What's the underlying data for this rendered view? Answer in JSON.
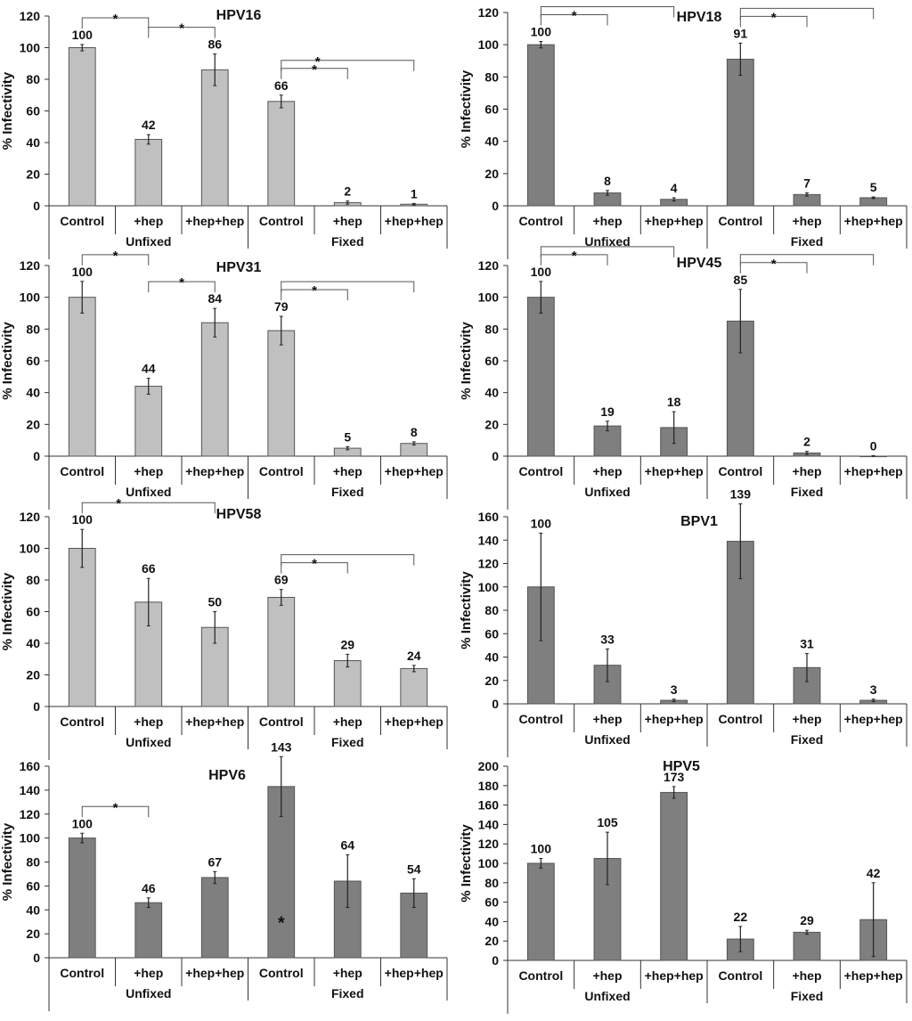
{
  "colors": {
    "light_bar": "#c0c0c0",
    "dark_bar": "#7f7f7f",
    "bar_stroke": "#555555",
    "axis": "#333333",
    "text": "#111111"
  },
  "chart_data": [
    {
      "type": "bar",
      "title": "HPV16",
      "ylabel": "% Infectivity",
      "ylim": [
        0,
        120
      ],
      "yticks": [
        0,
        20,
        40,
        60,
        80,
        100,
        120
      ],
      "categories": [
        "Control",
        "+hep",
        "+hep+hep",
        "Control",
        "+hep",
        "+hep+hep"
      ],
      "groups": [
        "Unfixed",
        "Fixed"
      ],
      "values": [
        100,
        42,
        86,
        66,
        2,
        1
      ],
      "value_labels": [
        "100",
        "42",
        "86",
        "66",
        "2",
        "1"
      ],
      "errors": [
        2,
        3,
        10,
        4,
        1,
        0.5
      ],
      "bar_color": "light",
      "significance": [
        {
          "from": 0,
          "to": 1,
          "label": "*"
        },
        {
          "from": 1,
          "to": 2,
          "label": "*"
        },
        {
          "from": 3,
          "to": 4,
          "label": "*"
        },
        {
          "from": 3,
          "to": 5,
          "label": "*"
        }
      ],
      "in_bar_marks": []
    },
    {
      "type": "bar",
      "title": "HPV18",
      "ylabel": "% Infectivity",
      "ylim": [
        0,
        120
      ],
      "yticks": [
        0,
        20,
        40,
        60,
        80,
        100,
        120
      ],
      "categories": [
        "Control",
        "+hep",
        "+hep+hep",
        "Control",
        "+hep",
        "+hep+hep"
      ],
      "groups": [
        "Unfixed",
        "Fixed"
      ],
      "values": [
        100,
        8,
        4,
        91,
        7,
        5
      ],
      "value_labels": [
        "100",
        "8",
        "4",
        "91",
        "7",
        "5"
      ],
      "errors": [
        2,
        1.5,
        1,
        10,
        1,
        0.5
      ],
      "bar_color": "dark",
      "significance": [
        {
          "from": 0,
          "to": 1,
          "label": "*"
        },
        {
          "from": 0,
          "to": 2,
          "label": ""
        },
        {
          "from": 3,
          "to": 4,
          "label": "*"
        },
        {
          "from": 3,
          "to": 5,
          "label": ""
        }
      ],
      "in_bar_marks": []
    },
    {
      "type": "bar",
      "title": "HPV31",
      "ylabel": "% Infectivity",
      "ylim": [
        0,
        120
      ],
      "yticks": [
        0,
        20,
        40,
        60,
        80,
        100,
        120
      ],
      "categories": [
        "Control",
        "+hep",
        "+hep+hep",
        "Control",
        "+hep",
        "+hep+hep"
      ],
      "groups": [
        "Unfixed",
        "Fixed"
      ],
      "values": [
        100,
        44,
        84,
        79,
        5,
        8
      ],
      "value_labels": [
        "100",
        "44",
        "84",
        "79",
        "5",
        "8"
      ],
      "errors": [
        10,
        5,
        9,
        9,
        1,
        1
      ],
      "bar_color": "light",
      "significance": [
        {
          "from": 0,
          "to": 1,
          "label": "*"
        },
        {
          "from": 1,
          "to": 2,
          "label": "*"
        },
        {
          "from": 3,
          "to": 4,
          "label": "*"
        },
        {
          "from": 3,
          "to": 5,
          "label": ""
        }
      ],
      "in_bar_marks": []
    },
    {
      "type": "bar",
      "title": "HPV45",
      "ylabel": "% Infectivity",
      "ylim": [
        0,
        120
      ],
      "yticks": [
        0,
        20,
        40,
        60,
        80,
        100,
        120
      ],
      "categories": [
        "Control",
        "+hep",
        "+hep+hep",
        "Control",
        "+hep",
        "+hep+hep"
      ],
      "groups": [
        "Unfixed",
        "Fixed"
      ],
      "values": [
        100,
        19,
        18,
        85,
        2,
        0
      ],
      "value_labels": [
        "100",
        "19",
        "18",
        "85",
        "2",
        "0"
      ],
      "errors": [
        10,
        3,
        10,
        20,
        1,
        0.3
      ],
      "bar_color": "dark",
      "significance": [
        {
          "from": 0,
          "to": 1,
          "label": "*"
        },
        {
          "from": 0,
          "to": 2,
          "label": ""
        },
        {
          "from": 3,
          "to": 4,
          "label": "*"
        },
        {
          "from": 3,
          "to": 5,
          "label": ""
        }
      ],
      "in_bar_marks": []
    },
    {
      "type": "bar",
      "title": "HPV58",
      "ylabel": "% Infectivity",
      "ylim": [
        0,
        120
      ],
      "yticks": [
        0,
        20,
        40,
        60,
        80,
        100,
        120
      ],
      "categories": [
        "Control",
        "+hep",
        "+hep+hep",
        "Control",
        "+hep",
        "+hep+hep"
      ],
      "groups": [
        "Unfixed",
        "Fixed"
      ],
      "values": [
        100,
        66,
        50,
        69,
        29,
        24
      ],
      "value_labels": [
        "100",
        "66",
        "50",
        "69",
        "29",
        "24"
      ],
      "errors": [
        12,
        15,
        10,
        5,
        4,
        2
      ],
      "bar_color": "light",
      "significance": [
        {
          "from": 0,
          "to": 2,
          "label": "*"
        },
        {
          "from": 3,
          "to": 4,
          "label": "*"
        },
        {
          "from": 3,
          "to": 5,
          "label": ""
        }
      ],
      "in_bar_marks": []
    },
    {
      "type": "bar",
      "title": "BPV1",
      "ylabel": "% Infectivity",
      "ylim": [
        0,
        160
      ],
      "yticks": [
        0,
        20,
        40,
        60,
        80,
        100,
        120,
        140,
        160
      ],
      "categories": [
        "Control",
        "+hep",
        "+hep+hep",
        "Control",
        "+hep",
        "+hep+hep"
      ],
      "groups": [
        "Unfixed",
        "Fixed"
      ],
      "values": [
        100,
        33,
        3,
        139,
        31,
        3
      ],
      "value_labels": [
        "100",
        "33",
        "3",
        "139",
        "31",
        "3"
      ],
      "errors": [
        46,
        14,
        1,
        32,
        12,
        1
      ],
      "bar_color": "dark",
      "significance": [],
      "in_bar_marks": []
    },
    {
      "type": "bar",
      "title": "HPV6",
      "ylabel": "% Infectivity",
      "ylim": [
        0,
        160
      ],
      "yticks": [
        0,
        20,
        40,
        60,
        80,
        100,
        120,
        140,
        160
      ],
      "categories": [
        "Control",
        "+hep",
        "+hep+hep",
        "Control",
        "+hep",
        "+hep+hep"
      ],
      "groups": [
        "Unfixed",
        "Fixed"
      ],
      "values": [
        100,
        46,
        67,
        143,
        64,
        54
      ],
      "value_labels": [
        "100",
        "46",
        "67",
        "143",
        "64",
        "54"
      ],
      "errors": [
        4,
        4,
        5,
        25,
        22,
        12
      ],
      "bar_color": "dark",
      "significance": [
        {
          "from": 0,
          "to": 1,
          "label": "*"
        }
      ],
      "in_bar_marks": [
        {
          "bar": 3,
          "value": 30,
          "label": "*"
        }
      ]
    },
    {
      "type": "bar",
      "title": "HPV5",
      "ylabel": "% Infectivity",
      "ylim": [
        0,
        200
      ],
      "yticks": [
        0,
        20,
        40,
        60,
        80,
        100,
        120,
        140,
        160,
        180,
        200
      ],
      "categories": [
        "Control",
        "+hep",
        "+hep+hep",
        "Control",
        "+hep",
        "+hep+hep"
      ],
      "groups": [
        "Unfixed",
        "Fixed"
      ],
      "values": [
        100,
        105,
        173,
        22,
        29,
        42
      ],
      "value_labels": [
        "100",
        "105",
        "173",
        "22",
        "29",
        "42"
      ],
      "errors": [
        5,
        27,
        6,
        13,
        2,
        38
      ],
      "bar_color": "dark",
      "significance": [],
      "in_bar_marks": []
    }
  ]
}
